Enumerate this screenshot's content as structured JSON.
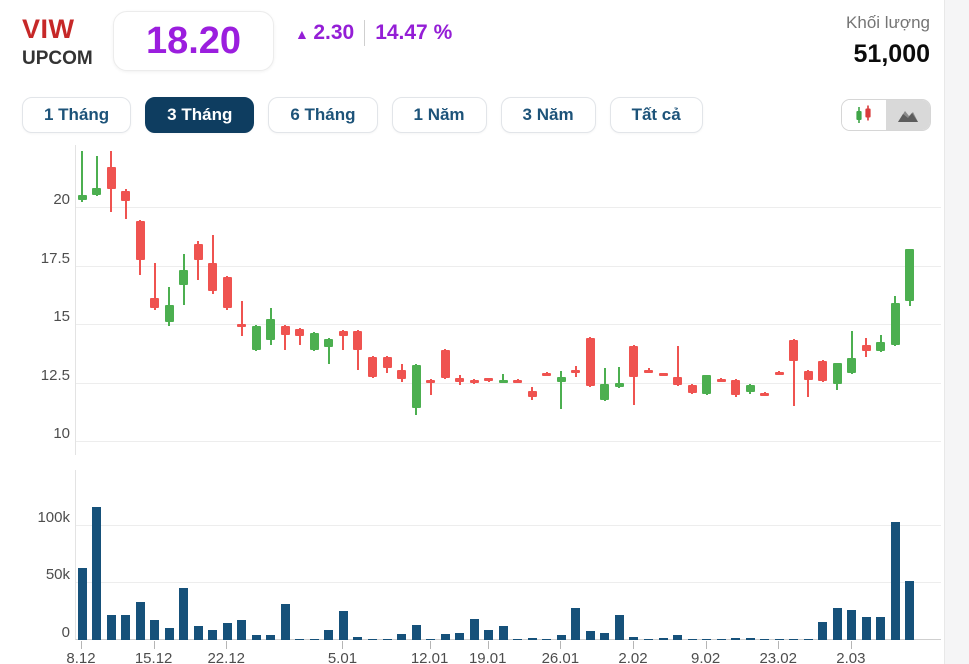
{
  "header": {
    "symbol": "VIW",
    "exchange": "UPCOM",
    "price": "18.20",
    "change_arrow": "▲",
    "change_value": "2.30",
    "change_percent": "14.47 %",
    "change_direction": "up",
    "volume_label": "Khối lượng",
    "volume_value": "51,000",
    "colors": {
      "symbol_red": "#c62828",
      "price_purple": "#9b1ede",
      "change_purple": "#941ed6"
    }
  },
  "tabs": {
    "items": [
      {
        "label": "1 Tháng",
        "selected": false
      },
      {
        "label": "3 Tháng",
        "selected": true
      },
      {
        "label": "6 Tháng",
        "selected": false
      },
      {
        "label": "1 Năm",
        "selected": false
      },
      {
        "label": "3 Năm",
        "selected": false
      },
      {
        "label": "Tất cả",
        "selected": false
      }
    ]
  },
  "chart_toggle": {
    "options": [
      {
        "name": "candlestick-chart-mode",
        "selected": true
      },
      {
        "name": "area-chart-mode",
        "selected": false
      }
    ]
  },
  "chart_data": [
    {
      "type": "candlestick",
      "title": "VIW 3-month daily price (thousand VND)",
      "up_color": "#4caf50",
      "down_color": "#ef5350",
      "grid": true,
      "ylim": [
        10,
        22.65
      ],
      "y_ticks": [
        {
          "v": 20,
          "label": "20"
        },
        {
          "v": 17.5,
          "label": "17.5"
        },
        {
          "v": 15,
          "label": "15"
        },
        {
          "v": 12.5,
          "label": "12.5"
        },
        {
          "v": 10,
          "label": "10"
        }
      ],
      "x_ticks": [
        {
          "i": 0,
          "label": "8.12"
        },
        {
          "i": 5,
          "label": "15.12"
        },
        {
          "i": 10,
          "label": "22.12"
        },
        {
          "i": 18,
          "label": "5.01"
        },
        {
          "i": 24,
          "label": "12.01"
        },
        {
          "i": 28,
          "label": "19.01"
        },
        {
          "i": 33,
          "label": "26.01"
        },
        {
          "i": 38,
          "label": "2.02"
        },
        {
          "i": 43,
          "label": "9.02"
        },
        {
          "i": 48,
          "label": "23.02"
        },
        {
          "i": 53,
          "label": "2.03"
        }
      ],
      "ohlc": [
        [
          20.3,
          22.4,
          20.2,
          20.5
        ],
        [
          20.5,
          22.2,
          20.45,
          20.8
        ],
        [
          21.7,
          22.4,
          19.8,
          20.75
        ],
        [
          20.7,
          20.75,
          19.5,
          20.25
        ],
        [
          19.4,
          19.45,
          17.1,
          17.75
        ],
        [
          16.1,
          17.6,
          15.6,
          15.7
        ],
        [
          15.1,
          16.6,
          14.9,
          15.8
        ],
        [
          16.65,
          18.0,
          15.8,
          17.3
        ],
        [
          18.4,
          18.55,
          16.9,
          17.75
        ],
        [
          17.6,
          18.8,
          16.3,
          16.4
        ],
        [
          17.0,
          17.05,
          15.6,
          15.7
        ],
        [
          15.0,
          16.0,
          14.5,
          14.95
        ],
        [
          13.9,
          14.95,
          13.85,
          14.9
        ],
        [
          14.3,
          15.7,
          14.1,
          15.2
        ],
        [
          14.9,
          14.95,
          13.9,
          14.55
        ],
        [
          14.8,
          14.85,
          14.1,
          14.5
        ],
        [
          13.9,
          14.65,
          13.85,
          14.6
        ],
        [
          14.0,
          14.4,
          13.3,
          14.35
        ],
        [
          14.7,
          14.75,
          13.9,
          14.5
        ],
        [
          14.7,
          14.75,
          13.05,
          13.9
        ],
        [
          13.6,
          13.65,
          12.7,
          12.75
        ],
        [
          13.6,
          13.65,
          12.9,
          13.1
        ],
        [
          13.05,
          13.3,
          12.5,
          12.65
        ],
        [
          11.4,
          13.3,
          11.1,
          13.25
        ],
        [
          12.6,
          12.65,
          11.95,
          12.5
        ],
        [
          13.9,
          13.95,
          12.65,
          12.7
        ],
        [
          12.7,
          12.8,
          12.4,
          12.5
        ],
        [
          12.6,
          12.65,
          12.45,
          12.5
        ],
        [
          12.7,
          12.7,
          12.5,
          12.55
        ],
        [
          12.55,
          12.85,
          12.5,
          12.6
        ],
        [
          12.6,
          12.65,
          12.5,
          12.55
        ],
        [
          12.15,
          12.3,
          11.75,
          11.9
        ],
        [
          12.9,
          12.95,
          12.8,
          12.85
        ],
        [
          12.5,
          13.0,
          11.35,
          12.75
        ],
        [
          13.05,
          13.2,
          12.75,
          13.0
        ],
        [
          14.4,
          14.45,
          12.3,
          12.35
        ],
        [
          11.75,
          13.1,
          11.7,
          12.45
        ],
        [
          12.3,
          13.15,
          12.25,
          12.5
        ],
        [
          14.05,
          14.1,
          11.55,
          12.75
        ],
        [
          13.05,
          13.1,
          12.95,
          13.0
        ],
        [
          12.9,
          12.9,
          12.8,
          12.85
        ],
        [
          12.75,
          14.05,
          12.35,
          12.4
        ],
        [
          12.4,
          12.45,
          12.0,
          12.05
        ],
        [
          12.0,
          12.8,
          11.95,
          12.8
        ],
        [
          12.65,
          12.7,
          12.55,
          12.6
        ],
        [
          12.6,
          12.65,
          11.9,
          11.95
        ],
        [
          12.1,
          12.45,
          12.0,
          12.4
        ],
        [
          12.05,
          12.1,
          11.95,
          12.0
        ],
        [
          12.95,
          13.0,
          12.85,
          12.9
        ],
        [
          14.3,
          14.35,
          11.5,
          13.4
        ],
        [
          13.0,
          13.05,
          11.9,
          12.6
        ],
        [
          13.4,
          13.45,
          12.5,
          12.55
        ],
        [
          12.45,
          13.35,
          12.2,
          13.35
        ],
        [
          12.9,
          14.7,
          12.85,
          13.55
        ],
        [
          14.1,
          14.4,
          13.6,
          13.85
        ],
        [
          13.85,
          14.55,
          13.8,
          14.25
        ],
        [
          14.1,
          16.2,
          14.05,
          15.9
        ],
        [
          16.0,
          18.2,
          15.75,
          18.2
        ]
      ]
    },
    {
      "type": "bar",
      "title": "Daily volume",
      "bar_color": "#16517a",
      "ylim": [
        0,
        145000
      ],
      "y_ticks": [
        {
          "v": 100000,
          "label": "100k"
        },
        {
          "v": 50000,
          "label": "50k"
        },
        {
          "v": 0,
          "label": "0"
        }
      ],
      "values": [
        62000,
        115000,
        22000,
        22000,
        33000,
        17000,
        10000,
        45000,
        12000,
        9000,
        15000,
        17000,
        4000,
        4000,
        31000,
        1200,
        1000,
        9000,
        25000,
        2500,
        1000,
        1000,
        5000,
        13000,
        600,
        5000,
        6000,
        18000,
        9000,
        12000,
        400,
        2000,
        500,
        4000,
        28000,
        8000,
        6000,
        22000,
        3000,
        400,
        1500,
        4000,
        400,
        700,
        300,
        1500,
        2000,
        300,
        400,
        1200,
        1200,
        16000,
        28000,
        26000,
        20000,
        20000,
        102000,
        51000
      ]
    }
  ]
}
